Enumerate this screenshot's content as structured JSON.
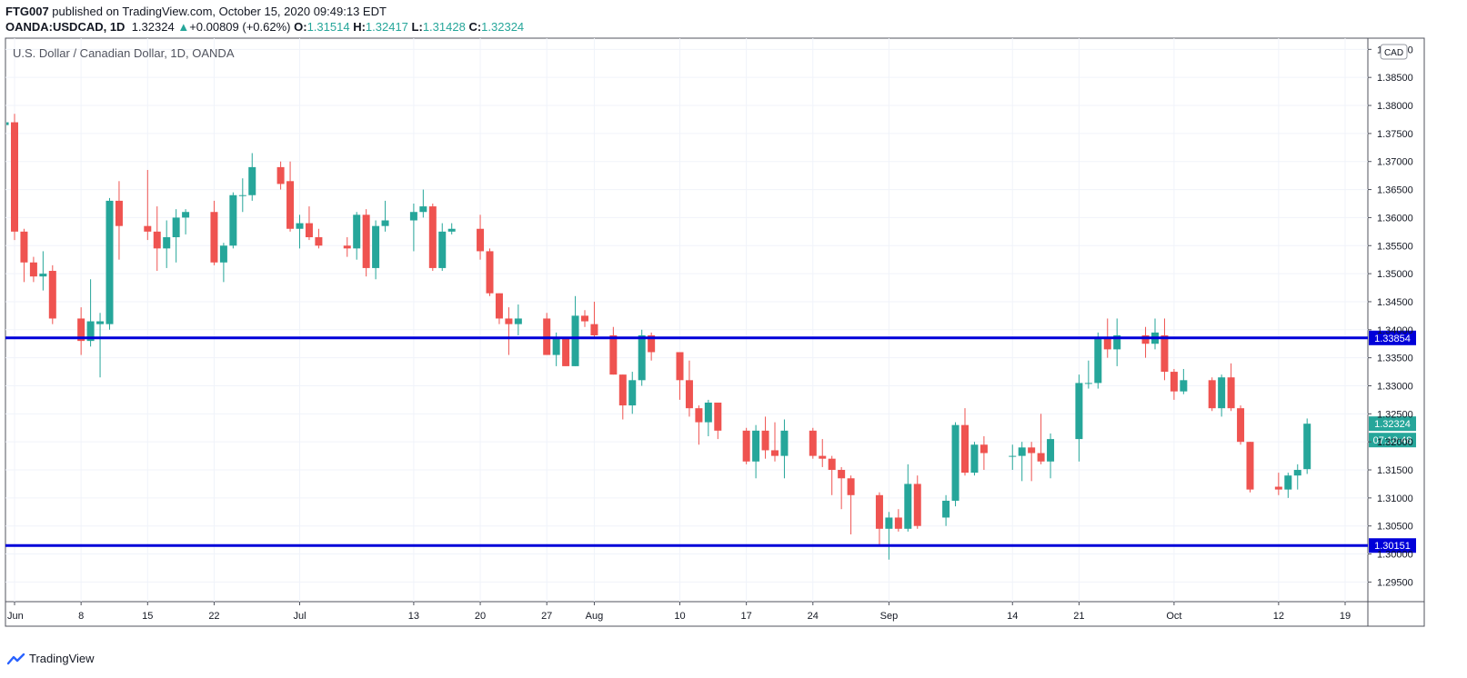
{
  "header": {
    "publisher": "FTG007",
    "published_text": " published on TradingView.com, October 15, 2020 09:49:13 EDT",
    "symbol": "OANDA:USDCAD, 1D",
    "last": "1.32324",
    "change_arrow": "▲",
    "change": "+0.00809 (+0.62%)",
    "open_label": "O:",
    "open": "1.31514",
    "high_label": "H:",
    "high": "1.32417",
    "low_label": "L:",
    "low": "1.31428",
    "close_label": "C:",
    "close": "1.32324"
  },
  "footer": {
    "brand": "TradingView"
  },
  "colors": {
    "up": "#26a69a",
    "down": "#ef5350",
    "level": "#0000d9",
    "grid": "#f0f3fa"
  },
  "chart_data": {
    "type": "candlestick",
    "title": "U.S. Dollar / Canadian Dollar, 1D, OANDA",
    "currency_label": "CAD",
    "ylim": [
      1.2915,
      1.392
    ],
    "y_ticks": [
      "1.29500",
      "1.30000",
      "1.30500",
      "1.31000",
      "1.31500",
      "1.32000",
      "1.32500",
      "1.33000",
      "1.33500",
      "1.34000",
      "1.34500",
      "1.35000",
      "1.35500",
      "1.36000",
      "1.36500",
      "1.37000",
      "1.37500",
      "1.38000",
      "1.38500",
      "1.39000"
    ],
    "x_ticks": [
      {
        "label": "Jun",
        "day": 0
      },
      {
        "label": "8",
        "day": 7
      },
      {
        "label": "15",
        "day": 14
      },
      {
        "label": "22",
        "day": 21
      },
      {
        "label": "Jul",
        "day": 30
      },
      {
        "label": "13",
        "day": 42
      },
      {
        "label": "20",
        "day": 49
      },
      {
        "label": "27",
        "day": 56
      },
      {
        "label": "Aug",
        "day": 61
      },
      {
        "label": "10",
        "day": 70
      },
      {
        "label": "17",
        "day": 77
      },
      {
        "label": "24",
        "day": 84
      },
      {
        "label": "Sep",
        "day": 92
      },
      {
        "label": "14",
        "day": 105
      },
      {
        "label": "21",
        "day": 112
      },
      {
        "label": "Oct",
        "day": 122
      },
      {
        "label": "12",
        "day": 133
      },
      {
        "label": "19",
        "day": 140
      }
    ],
    "levels": [
      {
        "value": 1.33854,
        "label": "1.33854"
      },
      {
        "value": 1.30151,
        "label": "1.30151"
      }
    ],
    "last_price": {
      "value": 1.32324,
      "label": "1.32324",
      "countdown": "07:10:48"
    },
    "candles": [
      {
        "d": -1,
        "o": 1.3765,
        "h": 1.378,
        "l": 1.3755,
        "c": 1.377
      },
      {
        "d": 0,
        "o": 1.377,
        "h": 1.3785,
        "l": 1.356,
        "c": 1.3575
      },
      {
        "d": 1,
        "o": 1.3575,
        "h": 1.358,
        "l": 1.3485,
        "c": 1.352
      },
      {
        "d": 2,
        "o": 1.352,
        "h": 1.353,
        "l": 1.3485,
        "c": 1.3495
      },
      {
        "d": 3,
        "o": 1.3495,
        "h": 1.354,
        "l": 1.347,
        "c": 1.35
      },
      {
        "d": 4,
        "o": 1.3505,
        "h": 1.3515,
        "l": 1.341,
        "c": 1.342
      },
      {
        "d": 7,
        "o": 1.342,
        "h": 1.344,
        "l": 1.3355,
        "c": 1.338
      },
      {
        "d": 8,
        "o": 1.338,
        "h": 1.349,
        "l": 1.337,
        "c": 1.3415
      },
      {
        "d": 9,
        "o": 1.341,
        "h": 1.343,
        "l": 1.3315,
        "c": 1.3415
      },
      {
        "d": 10,
        "o": 1.341,
        "h": 1.3635,
        "l": 1.34,
        "c": 1.363
      },
      {
        "d": 11,
        "o": 1.363,
        "h": 1.3665,
        "l": 1.3525,
        "c": 1.3585
      },
      {
        "d": 14,
        "o": 1.3585,
        "h": 1.3685,
        "l": 1.356,
        "c": 1.3575
      },
      {
        "d": 15,
        "o": 1.3575,
        "h": 1.362,
        "l": 1.3505,
        "c": 1.3545
      },
      {
        "d": 16,
        "o": 1.3545,
        "h": 1.3595,
        "l": 1.351,
        "c": 1.3565
      },
      {
        "d": 17,
        "o": 1.3565,
        "h": 1.3615,
        "l": 1.352,
        "c": 1.36
      },
      {
        "d": 18,
        "o": 1.36,
        "h": 1.3615,
        "l": 1.357,
        "c": 1.361
      },
      {
        "d": 21,
        "o": 1.361,
        "h": 1.363,
        "l": 1.3515,
        "c": 1.352
      },
      {
        "d": 22,
        "o": 1.352,
        "h": 1.3555,
        "l": 1.3485,
        "c": 1.355
      },
      {
        "d": 23,
        "o": 1.355,
        "h": 1.3645,
        "l": 1.3545,
        "c": 1.364
      },
      {
        "d": 24,
        "o": 1.364,
        "h": 1.367,
        "l": 1.361,
        "c": 1.364
      },
      {
        "d": 25,
        "o": 1.364,
        "h": 1.3715,
        "l": 1.363,
        "c": 1.369
      },
      {
        "d": 28,
        "o": 1.369,
        "h": 1.37,
        "l": 1.365,
        "c": 1.366
      },
      {
        "d": 29,
        "o": 1.3665,
        "h": 1.37,
        "l": 1.3575,
        "c": 1.358
      },
      {
        "d": 30,
        "o": 1.358,
        "h": 1.3605,
        "l": 1.3545,
        "c": 1.359
      },
      {
        "d": 31,
        "o": 1.359,
        "h": 1.362,
        "l": 1.356,
        "c": 1.3565
      },
      {
        "d": 32,
        "o": 1.3565,
        "h": 1.358,
        "l": 1.3545,
        "c": 1.355
      },
      {
        "d": 35,
        "o": 1.355,
        "h": 1.3565,
        "l": 1.353,
        "c": 1.3545
      },
      {
        "d": 36,
        "o": 1.3545,
        "h": 1.361,
        "l": 1.3525,
        "c": 1.3605
      },
      {
        "d": 37,
        "o": 1.3605,
        "h": 1.3615,
        "l": 1.3495,
        "c": 1.351
      },
      {
        "d": 38,
        "o": 1.351,
        "h": 1.3595,
        "l": 1.349,
        "c": 1.3585
      },
      {
        "d": 39,
        "o": 1.3585,
        "h": 1.363,
        "l": 1.3575,
        "c": 1.3595
      },
      {
        "d": 42,
        "o": 1.3595,
        "h": 1.3625,
        "l": 1.354,
        "c": 1.361
      },
      {
        "d": 43,
        "o": 1.361,
        "h": 1.365,
        "l": 1.36,
        "c": 1.362
      },
      {
        "d": 44,
        "o": 1.362,
        "h": 1.3625,
        "l": 1.3505,
        "c": 1.351
      },
      {
        "d": 45,
        "o": 1.351,
        "h": 1.359,
        "l": 1.3505,
        "c": 1.3575
      },
      {
        "d": 46,
        "o": 1.3575,
        "h": 1.359,
        "l": 1.357,
        "c": 1.358
      },
      {
        "d": 49,
        "o": 1.358,
        "h": 1.3605,
        "l": 1.3525,
        "c": 1.354
      },
      {
        "d": 50,
        "o": 1.354,
        "h": 1.3545,
        "l": 1.346,
        "c": 1.3465
      },
      {
        "d": 51,
        "o": 1.3465,
        "h": 1.3465,
        "l": 1.341,
        "c": 1.342
      },
      {
        "d": 52,
        "o": 1.342,
        "h": 1.344,
        "l": 1.3355,
        "c": 1.341
      },
      {
        "d": 53,
        "o": 1.341,
        "h": 1.3445,
        "l": 1.339,
        "c": 1.342
      },
      {
        "d": 56,
        "o": 1.342,
        "h": 1.343,
        "l": 1.3355,
        "c": 1.3355
      },
      {
        "d": 57,
        "o": 1.3355,
        "h": 1.3395,
        "l": 1.3335,
        "c": 1.3385
      },
      {
        "d": 58,
        "o": 1.3385,
        "h": 1.3385,
        "l": 1.3335,
        "c": 1.3335
      },
      {
        "d": 59,
        "o": 1.3335,
        "h": 1.346,
        "l": 1.3335,
        "c": 1.3425
      },
      {
        "d": 60,
        "o": 1.3425,
        "h": 1.3435,
        "l": 1.3405,
        "c": 1.3415
      },
      {
        "d": 61,
        "o": 1.341,
        "h": 1.345,
        "l": 1.3385,
        "c": 1.339
      },
      {
        "d": 63,
        "o": 1.339,
        "h": 1.3405,
        "l": 1.332,
        "c": 1.332
      },
      {
        "d": 64,
        "o": 1.332,
        "h": 1.332,
        "l": 1.324,
        "c": 1.3265
      },
      {
        "d": 65,
        "o": 1.3265,
        "h": 1.3325,
        "l": 1.325,
        "c": 1.331
      },
      {
        "d": 66,
        "o": 1.331,
        "h": 1.34,
        "l": 1.33,
        "c": 1.339
      },
      {
        "d": 67,
        "o": 1.339,
        "h": 1.3395,
        "l": 1.3345,
        "c": 1.336
      },
      {
        "d": 70,
        "o": 1.336,
        "h": 1.336,
        "l": 1.3275,
        "c": 1.331
      },
      {
        "d": 71,
        "o": 1.331,
        "h": 1.3345,
        "l": 1.3245,
        "c": 1.326
      },
      {
        "d": 72,
        "o": 1.326,
        "h": 1.3265,
        "l": 1.3195,
        "c": 1.3235
      },
      {
        "d": 73,
        "o": 1.3235,
        "h": 1.3275,
        "l": 1.321,
        "c": 1.327
      },
      {
        "d": 74,
        "o": 1.327,
        "h": 1.327,
        "l": 1.3205,
        "c": 1.322
      },
      {
        "d": 77,
        "o": 1.322,
        "h": 1.3225,
        "l": 1.316,
        "c": 1.3165
      },
      {
        "d": 78,
        "o": 1.3165,
        "h": 1.323,
        "l": 1.3135,
        "c": 1.322
      },
      {
        "d": 79,
        "o": 1.322,
        "h": 1.3245,
        "l": 1.317,
        "c": 1.3185
      },
      {
        "d": 80,
        "o": 1.3185,
        "h": 1.3235,
        "l": 1.3165,
        "c": 1.3175
      },
      {
        "d": 81,
        "o": 1.3175,
        "h": 1.324,
        "l": 1.3135,
        "c": 1.322
      },
      {
        "d": 84,
        "o": 1.322,
        "h": 1.3225,
        "l": 1.317,
        "c": 1.3175
      },
      {
        "d": 85,
        "o": 1.3175,
        "h": 1.3205,
        "l": 1.3155,
        "c": 1.317
      },
      {
        "d": 86,
        "o": 1.317,
        "h": 1.3175,
        "l": 1.3105,
        "c": 1.315
      },
      {
        "d": 87,
        "o": 1.315,
        "h": 1.3155,
        "l": 1.308,
        "c": 1.3135
      },
      {
        "d": 88,
        "o": 1.3135,
        "h": 1.314,
        "l": 1.3035,
        "c": 1.3105
      },
      {
        "d": 91,
        "o": 1.3105,
        "h": 1.311,
        "l": 1.3015,
        "c": 1.3045
      },
      {
        "d": 92,
        "o": 1.3045,
        "h": 1.3075,
        "l": 1.299,
        "c": 1.3065
      },
      {
        "d": 93,
        "o": 1.3065,
        "h": 1.308,
        "l": 1.304,
        "c": 1.3045
      },
      {
        "d": 94,
        "o": 1.3045,
        "h": 1.316,
        "l": 1.304,
        "c": 1.3125
      },
      {
        "d": 95,
        "o": 1.3125,
        "h": 1.314,
        "l": 1.3045,
        "c": 1.305
      },
      {
        "d": 98,
        "o": 1.3065,
        "h": 1.3105,
        "l": 1.305,
        "c": 1.3095
      },
      {
        "d": 99,
        "o": 1.3095,
        "h": 1.3235,
        "l": 1.3085,
        "c": 1.323
      },
      {
        "d": 100,
        "o": 1.323,
        "h": 1.326,
        "l": 1.314,
        "c": 1.3145
      },
      {
        "d": 101,
        "o": 1.3145,
        "h": 1.32,
        "l": 1.314,
        "c": 1.3195
      },
      {
        "d": 102,
        "o": 1.3195,
        "h": 1.321,
        "l": 1.315,
        "c": 1.318
      },
      {
        "d": 105,
        "o": 1.3175,
        "h": 1.3195,
        "l": 1.315,
        "c": 1.3175
      },
      {
        "d": 106,
        "o": 1.3175,
        "h": 1.32,
        "l": 1.313,
        "c": 1.319
      },
      {
        "d": 107,
        "o": 1.319,
        "h": 1.32,
        "l": 1.313,
        "c": 1.318
      },
      {
        "d": 108,
        "o": 1.318,
        "h": 1.325,
        "l": 1.316,
        "c": 1.3165
      },
      {
        "d": 109,
        "o": 1.3165,
        "h": 1.3215,
        "l": 1.3135,
        "c": 1.3205
      },
      {
        "d": 112,
        "o": 1.3205,
        "h": 1.332,
        "l": 1.3165,
        "c": 1.3305
      },
      {
        "d": 113,
        "o": 1.3305,
        "h": 1.3345,
        "l": 1.3295,
        "c": 1.3305
      },
      {
        "d": 114,
        "o": 1.3305,
        "h": 1.3395,
        "l": 1.3295,
        "c": 1.3385
      },
      {
        "d": 115,
        "o": 1.3385,
        "h": 1.342,
        "l": 1.335,
        "c": 1.3365
      },
      {
        "d": 116,
        "o": 1.3365,
        "h": 1.342,
        "l": 1.3335,
        "c": 1.339
      },
      {
        "d": 119,
        "o": 1.339,
        "h": 1.3405,
        "l": 1.335,
        "c": 1.3375
      },
      {
        "d": 120,
        "o": 1.3375,
        "h": 1.342,
        "l": 1.3365,
        "c": 1.3395
      },
      {
        "d": 121,
        "o": 1.339,
        "h": 1.342,
        "l": 1.331,
        "c": 1.3325
      },
      {
        "d": 122,
        "o": 1.3325,
        "h": 1.333,
        "l": 1.3275,
        "c": 1.329
      },
      {
        "d": 123,
        "o": 1.329,
        "h": 1.333,
        "l": 1.3285,
        "c": 1.331
      },
      {
        "d": 126,
        "o": 1.331,
        "h": 1.3315,
        "l": 1.3255,
        "c": 1.326
      },
      {
        "d": 127,
        "o": 1.326,
        "h": 1.332,
        "l": 1.3245,
        "c": 1.3315
      },
      {
        "d": 128,
        "o": 1.3315,
        "h": 1.334,
        "l": 1.3255,
        "c": 1.326
      },
      {
        "d": 129,
        "o": 1.326,
        "h": 1.3265,
        "l": 1.3195,
        "c": 1.32
      },
      {
        "d": 130,
        "o": 1.32,
        "h": 1.32,
        "l": 1.311,
        "c": 1.3115
      },
      {
        "d": 133,
        "o": 1.312,
        "h": 1.3145,
        "l": 1.3105,
        "c": 1.3115
      },
      {
        "d": 134,
        "o": 1.3115,
        "h": 1.3145,
        "l": 1.31,
        "c": 1.314
      },
      {
        "d": 135,
        "o": 1.314,
        "h": 1.316,
        "l": 1.3115,
        "c": 1.315
      },
      {
        "d": 136,
        "o": 1.31514,
        "h": 1.32417,
        "l": 1.31428,
        "c": 1.32324
      }
    ]
  }
}
